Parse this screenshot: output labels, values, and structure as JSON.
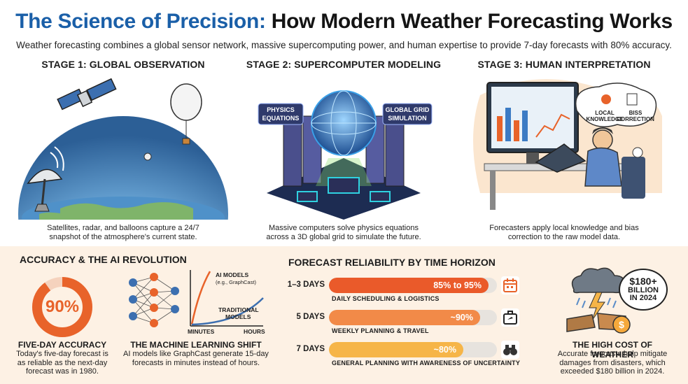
{
  "header": {
    "title_accent": "The Science of Precision:",
    "title_main": "How Modern Weather Forecasting Works",
    "subtitle": "Weather forecasting combines a global sensor network, massive supercomputing power, and human expertise to provide 7-day forecasts with 80% accuracy."
  },
  "stages": [
    {
      "title": "STAGE 1: GLOBAL OBSERVATION",
      "caption_line1": "Satellites, radar, and balloons capture a 24/7",
      "caption_line2": "snapshot of the atmosphere's current state."
    },
    {
      "title": "STAGE 2: SUPERCOMPUTER MODELING",
      "caption_line1": "Massive computers solve physics equations",
      "caption_line2": "across a 3D global grid to simulate the future.",
      "tag_left_1": "PHYSICS",
      "tag_left_2": "EQUATIONS",
      "tag_right_1": "GLOBAL GRID",
      "tag_right_2": "SIMULATION"
    },
    {
      "title": "STAGE 3: HUMAN INTERPRETATION",
      "caption_line1": "Forecasters apply local knowledge and bias",
      "caption_line2": "correction to the raw model data.",
      "bubble_left_1": "LOCAL",
      "bubble_left_2": "KNOWLEDGE",
      "bubble_right_1": "BISS",
      "bubble_right_2": "CORRECTION"
    }
  ],
  "accuracy": {
    "section_title": "ACCURACY & THE AI REVOLUTION",
    "donut_value": "90%",
    "donut_fraction": 0.9,
    "donut_title": "FIVE-DAY ACCURACY",
    "donut_caption_1": "Today's five-day forecast is",
    "donut_caption_2": "as reliable as the next-day",
    "donut_caption_3": "forecast was in 1980.",
    "ml_title": "THE MACHINE LEARNING SHIFT",
    "ml_caption_1": "AI models like GraphCast generate 15-day",
    "ml_caption_2": "forecasts in minutes instead of hours.",
    "curve_ai_label": "AI MODELS",
    "curve_ai_sub": "(e.g., GraphCast)",
    "curve_trad_label_1": "TRADITIONAL",
    "curve_trad_label_2": "MODELS",
    "axis_left": "MINUTES",
    "axis_right": "HOURS"
  },
  "reliability": {
    "section_title": "FORECAST RELIABILITY BY TIME HORIZON",
    "rows": [
      {
        "label": "1–3 DAYS",
        "value": "85% to 95%",
        "fill": 0.95,
        "sub": "DAILY SCHEDULING & LOGISTICS",
        "color": "#ea5a2a",
        "icon": "calendar-icon"
      },
      {
        "label": "5 DAYS",
        "value": "~90%",
        "fill": 0.9,
        "sub": "WEEKLY PLANNING & TRAVEL",
        "color": "#f28a48",
        "icon": "suitcase-icon"
      },
      {
        "label": "7 DAYS",
        "value": "~80%",
        "fill": 0.8,
        "sub": "GENERAL PLANNING WITH AWARENESS OF UNCERTAINTY",
        "color": "#f6b548",
        "icon": "binoculars-icon"
      }
    ]
  },
  "cost": {
    "bubble_1": "$180+",
    "bubble_2": "BILLION",
    "bubble_3": "IN 2024",
    "title": "THE HIGH COST OF WEATHER",
    "caption_1": "Accurate forecasts help mitigate",
    "caption_2": "damages from disasters, which",
    "caption_3": "exceeded $180 billion in 2024."
  },
  "colors": {
    "accent_blue": "#1a5fa8",
    "accent_orange": "#e8632a",
    "panel_bg": "#fdf1e4"
  }
}
